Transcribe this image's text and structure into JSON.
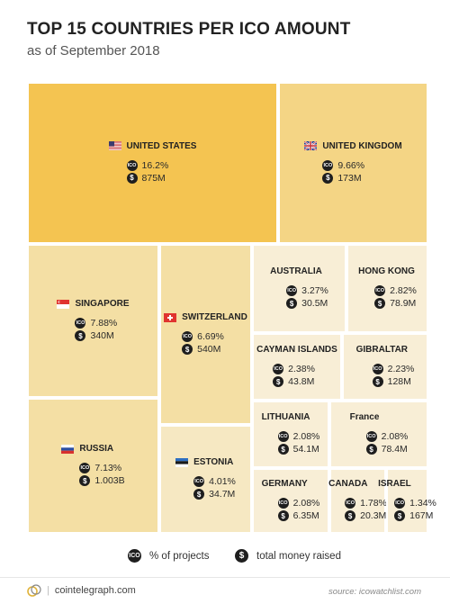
{
  "header": {
    "title": "TOP 15 COUNTRIES PER ICO AMOUNT",
    "subtitle": "as of September 2018"
  },
  "badges": {
    "ico": "ICO",
    "dollar": "$"
  },
  "chart_data": {
    "type": "treemap",
    "title": "TOP 15 COUNTRIES PER ICO AMOUNT",
    "subtitle": "as of September 2018",
    "items": [
      {
        "country": "UNITED STATES",
        "flag": "us-flag",
        "pct_projects": "16.2%",
        "money": "875M",
        "money_usd_m": 875,
        "color": "#f4c451"
      },
      {
        "country": "UNITED KINGDOM",
        "flag": "uk-flag",
        "pct_projects": "9.66%",
        "money": "173M",
        "money_usd_m": 173,
        "color": "#f4d585"
      },
      {
        "country": "SINGAPORE",
        "flag": "singapore-flag",
        "pct_projects": "7.88%",
        "money": "340M",
        "money_usd_m": 340,
        "color": "#f4dfa4"
      },
      {
        "country": "SWITZERLAND",
        "flag": "switzerland-flag",
        "pct_projects": "6.69%",
        "money": "540M",
        "money_usd_m": 540,
        "color": "#f4dfa4"
      },
      {
        "country": "RUSSIA",
        "flag": "russia-flag",
        "pct_projects": "7.13%",
        "money": "1.003B",
        "money_usd_m": 1003,
        "color": "#f4dfa4"
      },
      {
        "country": "ESTONIA",
        "flag": "estonia-flag",
        "pct_projects": "4.01%",
        "money": "34.7M",
        "money_usd_m": 34.7,
        "color": "#f6e8c2"
      },
      {
        "country": "AUSTRALIA",
        "flag": "",
        "pct_projects": "3.27%",
        "money": "30.5M",
        "money_usd_m": 30.5,
        "color": "#f8eed6"
      },
      {
        "country": "HONG KONG",
        "flag": "",
        "pct_projects": "2.82%",
        "money": "78.9M",
        "money_usd_m": 78.9,
        "color": "#f8eed6"
      },
      {
        "country": "CAYMAN ISLANDS",
        "flag": "",
        "pct_projects": "2.38%",
        "money": "43.8M",
        "money_usd_m": 43.8,
        "color": "#f8eed6"
      },
      {
        "country": "GIBRALTAR",
        "flag": "",
        "pct_projects": "2.23%",
        "money": "128M",
        "money_usd_m": 128,
        "color": "#f8eed6"
      },
      {
        "country": "LITHUANIA",
        "flag": "",
        "pct_projects": "2.08%",
        "money": "54.1M",
        "money_usd_m": 54.1,
        "color": "#f8eed6"
      },
      {
        "country": "France",
        "flag": "",
        "pct_projects": "2.08%",
        "money": "78.4M",
        "money_usd_m": 78.4,
        "color": "#f8eed6"
      },
      {
        "country": "GERMANY",
        "flag": "",
        "pct_projects": "2.08%",
        "money": "6.35M",
        "money_usd_m": 6.35,
        "color": "#f8eed6"
      },
      {
        "country": "CANADA",
        "flag": "",
        "pct_projects": "1.78%",
        "money": "20.3M",
        "money_usd_m": 20.3,
        "color": "#f8eed6"
      },
      {
        "country": "ISRAEL",
        "flag": "",
        "pct_projects": "1.34%",
        "money": "167M",
        "money_usd_m": 167,
        "color": "#f8eed6"
      }
    ]
  },
  "legend": {
    "ico_label": "% of projects",
    "money_label": "total money raised"
  },
  "footer": {
    "site": "cointelegraph.com",
    "source": "source: icowatchlist.com"
  }
}
